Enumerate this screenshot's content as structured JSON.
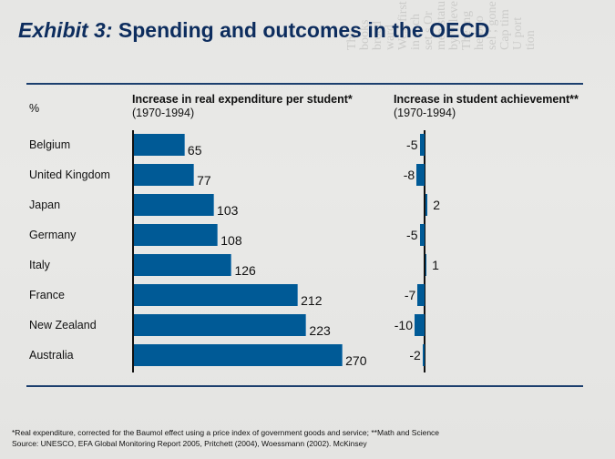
{
  "title": {
    "prefix": "Exhibit 3:",
    "main": "Spending and outcomes in the OECD"
  },
  "chart_data": {
    "type": "bar",
    "orientation": "horizontal",
    "unit_label": "%",
    "categories": [
      "Belgium",
      "United Kingdom",
      "Japan",
      "Germany",
      "Italy",
      "France",
      "New Zealand",
      "Australia"
    ],
    "series": [
      {
        "name": "Increase in real expenditure per student*",
        "period": "(1970-1994)",
        "values": [
          65,
          77,
          103,
          108,
          126,
          212,
          223,
          270
        ]
      },
      {
        "name": "Increase in student achievement**",
        "period": "(1970-1994)",
        "values": [
          -5,
          -8,
          2,
          -5,
          1,
          -7,
          -10,
          -2
        ]
      }
    ],
    "colors": {
      "bar": "#005a96",
      "title": "#0d2d5e",
      "rule": "#1c3f6e"
    }
  },
  "footnotes": {
    "note": "*Real expenditure, corrected for the Baumol effect using a price index of government goods and service; **Math and Science",
    "source": "Source: UNESCO, EFA Global Monitoring Report 2005, Pritchett (2004), Woessmann (2002). McKinsey"
  }
}
